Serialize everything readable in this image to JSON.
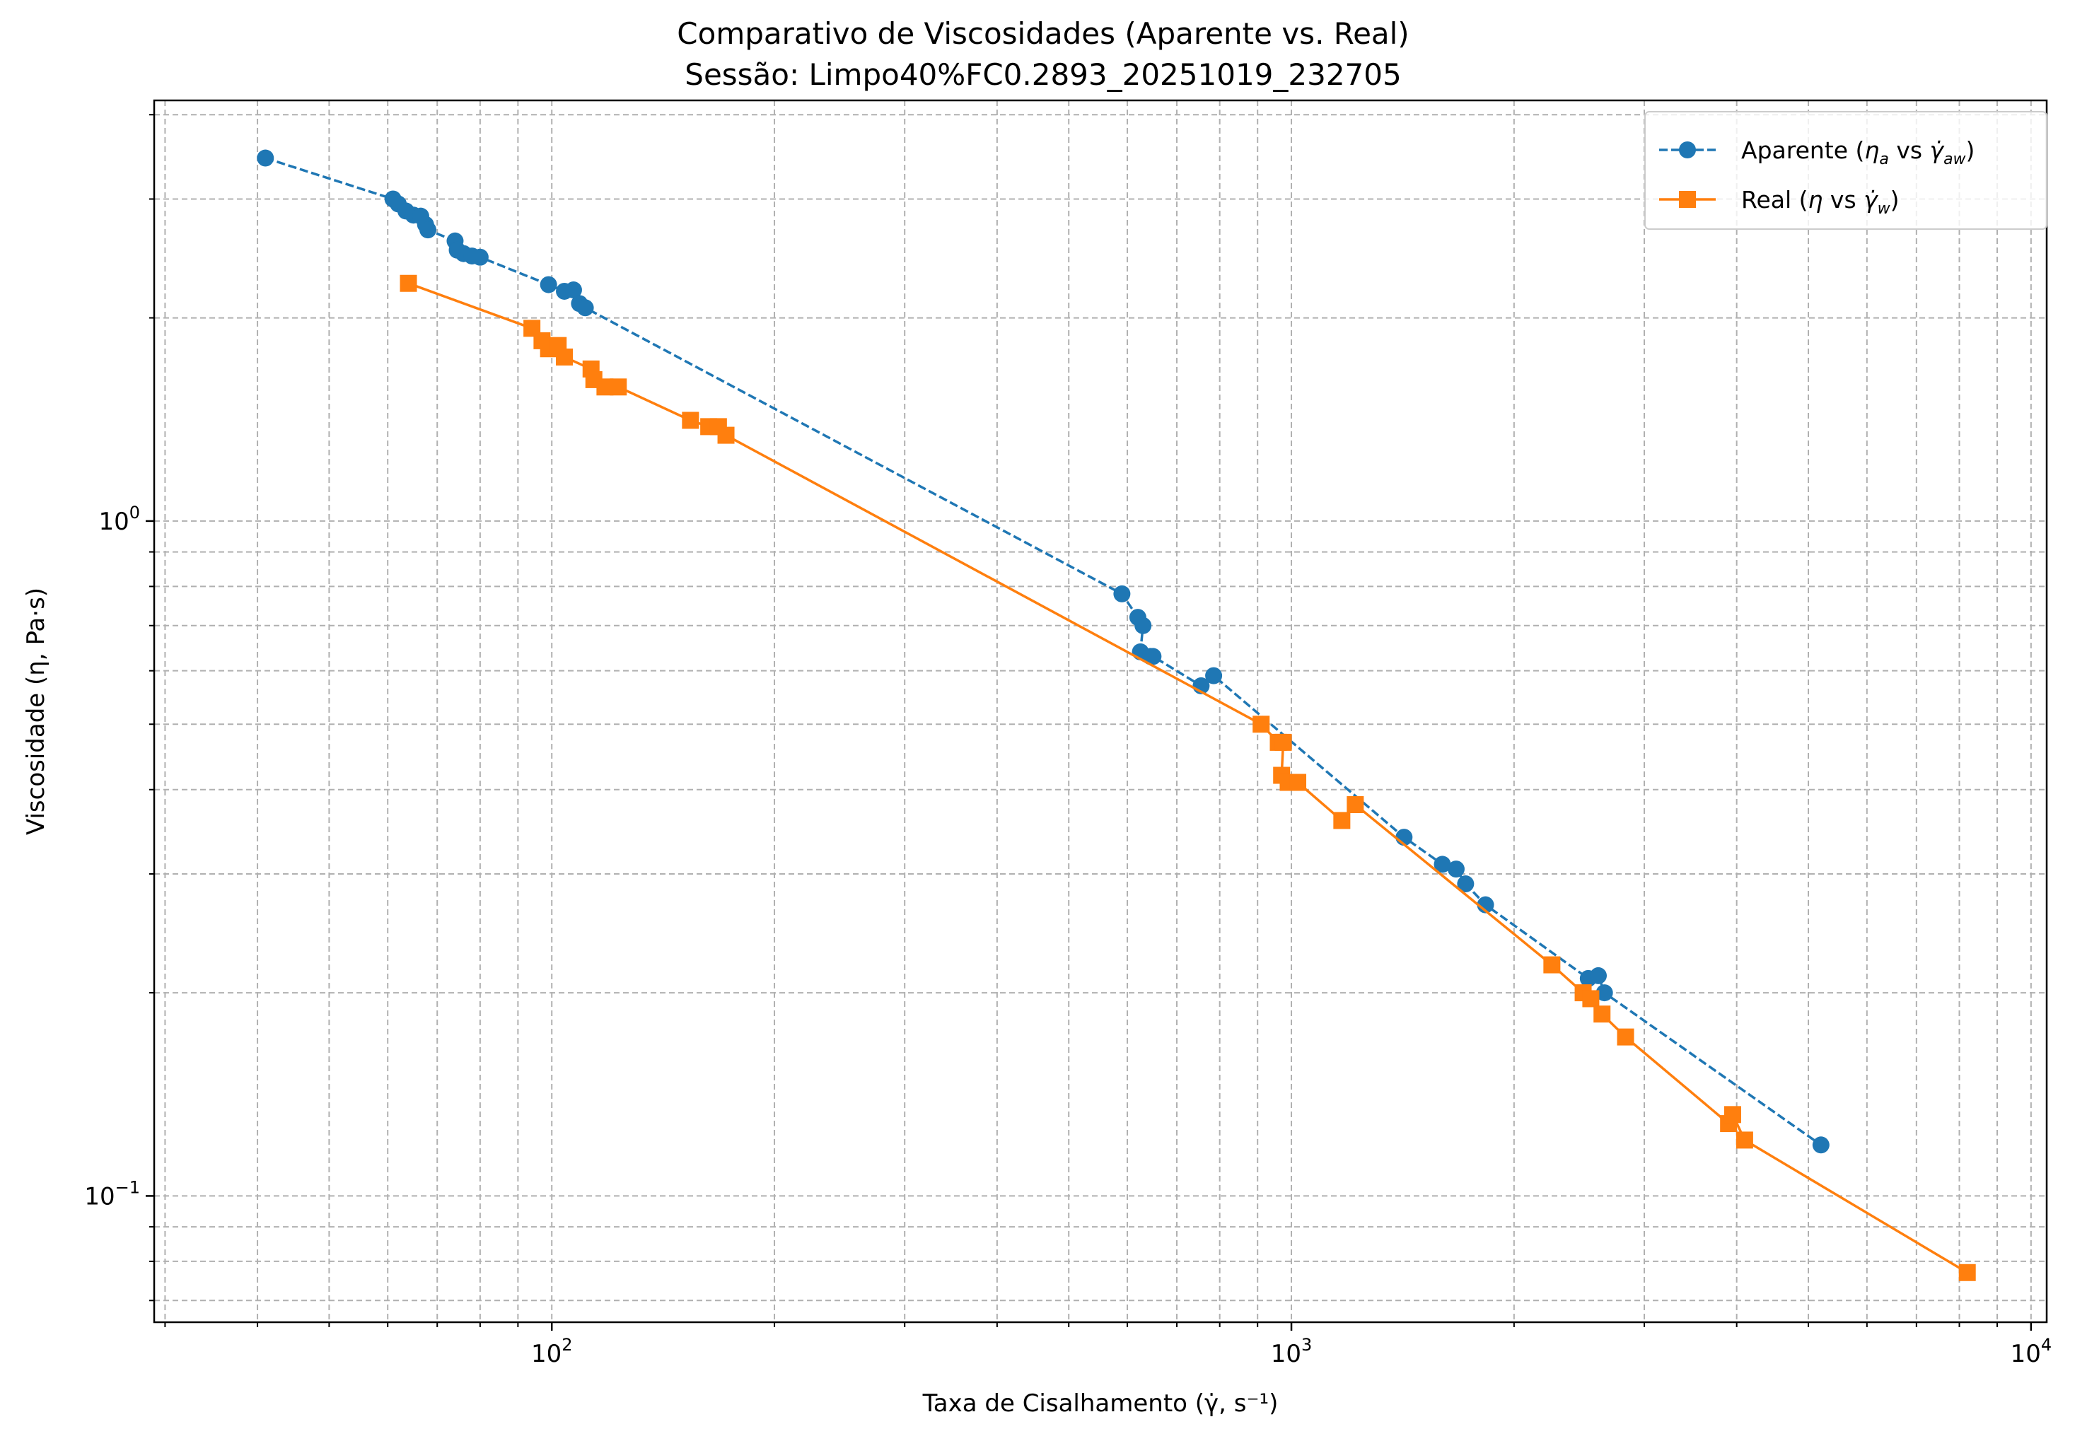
{
  "chart_data": {
    "type": "line",
    "title": "Comparativo de Viscosidades (Aparente vs. Real)",
    "subtitle": "Sessão: Limpo40%FC0.2893_20251019_232705",
    "xlabel": "Taxa de Cisalhamento (γ̇, s⁻¹)",
    "ylabel": "Viscosidade (η, Pa·s)",
    "xscale": "log",
    "yscale": "log",
    "xlim": [
      29,
      10500
    ],
    "ylim": [
      0.065,
      4.2
    ],
    "grid": true,
    "legend_position": "top-right",
    "x_ticks": [
      {
        "value": 100,
        "base": "10",
        "exp": "2"
      },
      {
        "value": 1000,
        "base": "10",
        "exp": "3"
      },
      {
        "value": 10000,
        "base": "10",
        "exp": "4"
      }
    ],
    "y_ticks": [
      {
        "value": 0.1,
        "base": "10",
        "exp": "−1"
      },
      {
        "value": 1,
        "base": "10",
        "exp": "0"
      }
    ],
    "series": [
      {
        "name": "Aparente (ηa vs γ̇aw)",
        "legend_main": "Aparente (",
        "legend_sym1": "η",
        "legend_sub1": "a",
        "legend_mid": " vs ",
        "legend_sym2": "γ̇",
        "legend_sub2": "aw",
        "legend_end": ")",
        "color": "#1f77b4",
        "marker": "circle",
        "linestyle": "dashed",
        "x": [
          41,
          61,
          62,
          63.5,
          65,
          66.5,
          67.5,
          68,
          74,
          74.5,
          76,
          78,
          80,
          99,
          104,
          107,
          109,
          111,
          590,
          620,
          630,
          625,
          645,
          650,
          755,
          785,
          1420,
          1600,
          1670,
          1720,
          1830,
          2520,
          2600,
          2650,
          5200
        ],
        "y": [
          3.45,
          3.0,
          2.95,
          2.88,
          2.84,
          2.83,
          2.75,
          2.7,
          2.6,
          2.52,
          2.49,
          2.47,
          2.46,
          2.24,
          2.19,
          2.2,
          2.1,
          2.07,
          0.78,
          0.72,
          0.7,
          0.64,
          0.63,
          0.63,
          0.57,
          0.59,
          0.34,
          0.31,
          0.305,
          0.29,
          0.27,
          0.21,
          0.212,
          0.2,
          0.119
        ]
      },
      {
        "name": "Real (η vs γ̇w)",
        "legend_main": "Real (",
        "legend_sym1": "η",
        "legend_sub1": "",
        "legend_mid": " vs ",
        "legend_sym2": "γ̇",
        "legend_sub2": "w",
        "legend_end": ")",
        "color": "#ff7f0e",
        "marker": "square",
        "linestyle": "solid",
        "x": [
          64,
          94,
          97,
          99,
          102,
          104,
          113,
          114,
          118,
          123,
          154,
          163,
          168,
          172,
          910,
          960,
          975,
          970,
          990,
          1020,
          1170,
          1220,
          2250,
          2480,
          2540,
          2630,
          2830,
          3900,
          3950,
          4100,
          8200
        ],
        "y": [
          2.25,
          1.93,
          1.85,
          1.8,
          1.82,
          1.75,
          1.68,
          1.62,
          1.58,
          1.58,
          1.41,
          1.38,
          1.38,
          1.34,
          0.5,
          0.47,
          0.47,
          0.42,
          0.41,
          0.41,
          0.36,
          0.38,
          0.22,
          0.2,
          0.196,
          0.186,
          0.172,
          0.128,
          0.132,
          0.121,
          0.077
        ]
      }
    ]
  }
}
